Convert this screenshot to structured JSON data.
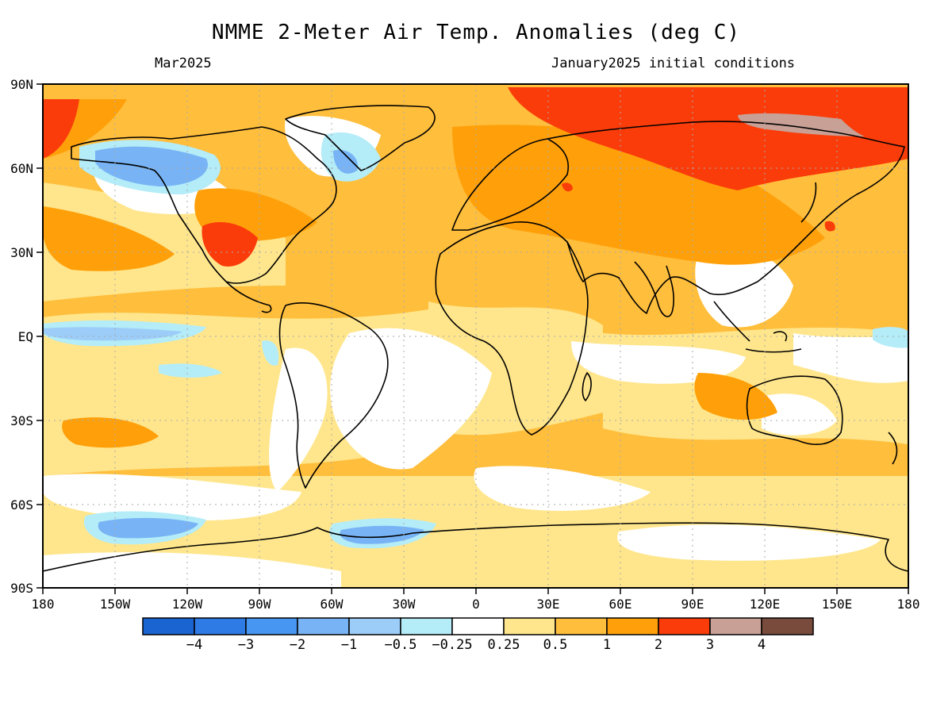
{
  "header": {
    "title": "NMME 2-Meter Air Temp. Anomalies (deg C)",
    "valid_month": "Mar2025",
    "init_conditions": "January2025 initial conditions"
  },
  "map": {
    "lat_labels": [
      "90N",
      "60N",
      "30N",
      "EQ",
      "30S",
      "60S",
      "90S"
    ],
    "lon_labels": [
      "180",
      "150W",
      "120W",
      "90W",
      "60W",
      "30W",
      "0",
      "30E",
      "60E",
      "90E",
      "120E",
      "150E",
      "180"
    ]
  },
  "colorbar": {
    "labels": [
      "−4",
      "−3",
      "−2",
      "−1",
      "−0.5",
      "−0.25",
      "0.25",
      "0.5",
      "1",
      "2",
      "3",
      "4"
    ],
    "colors": [
      "#1a64d2",
      "#2f7be6",
      "#4696f2",
      "#78b4f5",
      "#9cccf8",
      "#b4ecf8",
      "#ffffff",
      "#ffe68c",
      "#ffbe3c",
      "#ffa00a",
      "#fa3c0a",
      "#c8a096",
      "#784b3c"
    ]
  },
  "colors": {
    "land_outline": "#000000",
    "grid": "#aaaaaa"
  }
}
